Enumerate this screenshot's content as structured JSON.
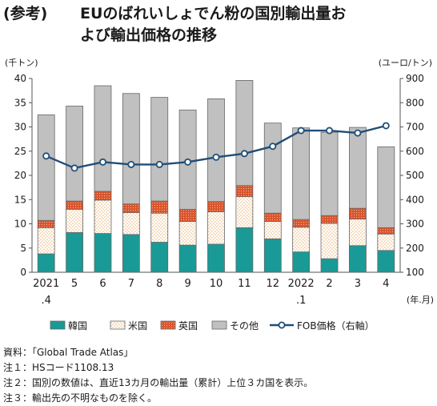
{
  "title": {
    "tag": "(参考)",
    "line1": "EUのばれいしょでん粉の国別輸出量お",
    "line2": "よび輸出価格の推移"
  },
  "notes": [
    "資料：「Global Trade Atlas」",
    "注１：HSコード1108.13",
    "注２：国別の数値は、直近13カ月の輸出量（累計）上位３カ国を表示。",
    "注３：輸出先の不明なものを除く。"
  ],
  "chart_data": {
    "type": "bar",
    "stacked": true,
    "categories": [
      "2021\n.4",
      "5",
      "6",
      "7",
      "8",
      "9",
      "10",
      "11",
      "12",
      "2022\n.1",
      "2",
      "3",
      "4"
    ],
    "xlabel": "(年.月)",
    "ylabel": "(千トン)",
    "y2label": "(ユーロ/トン)",
    "ylim": [
      0,
      40
    ],
    "yticks": [
      0,
      5,
      10,
      15,
      20,
      25,
      30,
      35,
      40
    ],
    "y2lim": [
      100,
      900
    ],
    "y2ticks": [
      100,
      200,
      300,
      400,
      500,
      600,
      700,
      800,
      900
    ],
    "grid": false,
    "legend_position": "bottom",
    "series": [
      {
        "name": "韓国",
        "kind": "bar",
        "color": "#1a9a96",
        "values": [
          3.8,
          8.2,
          8.0,
          7.8,
          6.2,
          5.6,
          5.8,
          9.2,
          6.9,
          4.2,
          2.8,
          5.5,
          4.5
        ]
      },
      {
        "name": "米国",
        "kind": "bar",
        "color": "#ffffff",
        "pattern": "dots",
        "values": [
          5.4,
          4.8,
          6.9,
          4.5,
          6.0,
          4.9,
          6.7,
          6.4,
          3.6,
          5.1,
          7.3,
          5.5,
          3.4
        ]
      },
      {
        "name": "英国",
        "kind": "bar",
        "color": "#d8542c",
        "pattern": "dots",
        "values": [
          1.5,
          1.7,
          1.8,
          1.8,
          2.5,
          2.5,
          2.1,
          2.3,
          1.7,
          1.6,
          1.6,
          2.2,
          1.3
        ]
      },
      {
        "name": "その他",
        "kind": "bar",
        "color": "#c0c0c0",
        "values": [
          21.8,
          19.6,
          21.8,
          22.8,
          21.4,
          20.5,
          21.2,
          21.7,
          18.6,
          18.9,
          17.2,
          16.7,
          16.7
        ]
      },
      {
        "name": "FOB価格（右軸）",
        "kind": "line",
        "axis": "right",
        "color": "#1f4e79",
        "values": [
          580,
          530,
          555,
          545,
          545,
          555,
          575,
          590,
          620,
          685,
          685,
          675,
          705
        ]
      }
    ]
  }
}
